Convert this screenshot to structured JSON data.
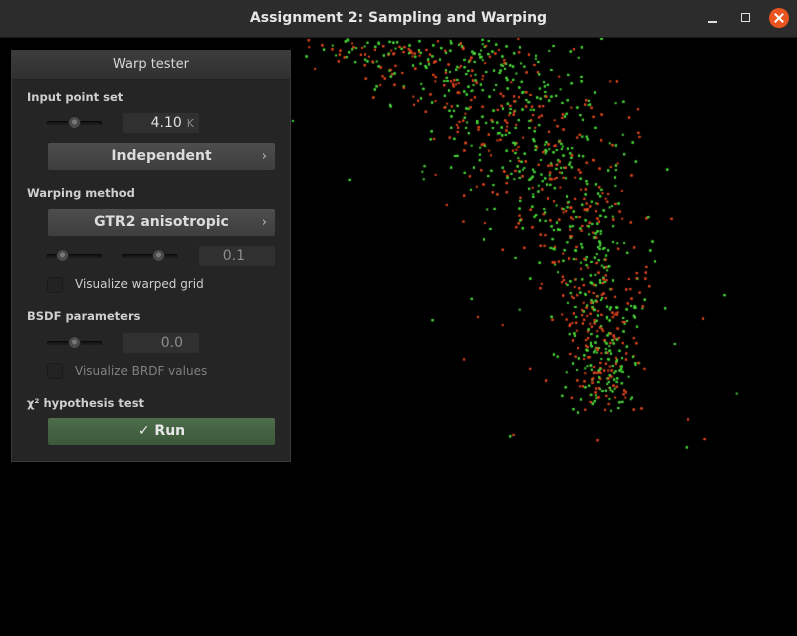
{
  "window": {
    "title": "Assignment 2: Sampling and Warping"
  },
  "panel": {
    "title": "Warp tester",
    "input_point_set": {
      "label": "Input point set",
      "slider_fraction": 0.5,
      "value": "4.10",
      "unit": "K",
      "mode": "Independent",
      "chevron": "›"
    },
    "warping_method": {
      "label": "Warping method",
      "method": "GTR2 anisotropic",
      "chevron": "›",
      "slider1_fraction": 0.3,
      "slider2_fraction": 0.7,
      "param_value": "0.1",
      "visualize_grid_label": "Visualize warped grid",
      "visualize_grid_checked": false
    },
    "bsdf": {
      "label": "BSDF parameters",
      "slider_fraction": 0.5,
      "value": "0.0",
      "visualize_brdf_label": "Visualize BRDF values",
      "visualize_brdf_checked": false
    },
    "chi2": {
      "label": "χ² hypothesis test",
      "run_label": "✓ Run"
    }
  },
  "colors": {
    "point_green": "#49d93a",
    "point_red": "#e0461e",
    "run_button": "#456342",
    "close_button": "#e95420"
  }
}
